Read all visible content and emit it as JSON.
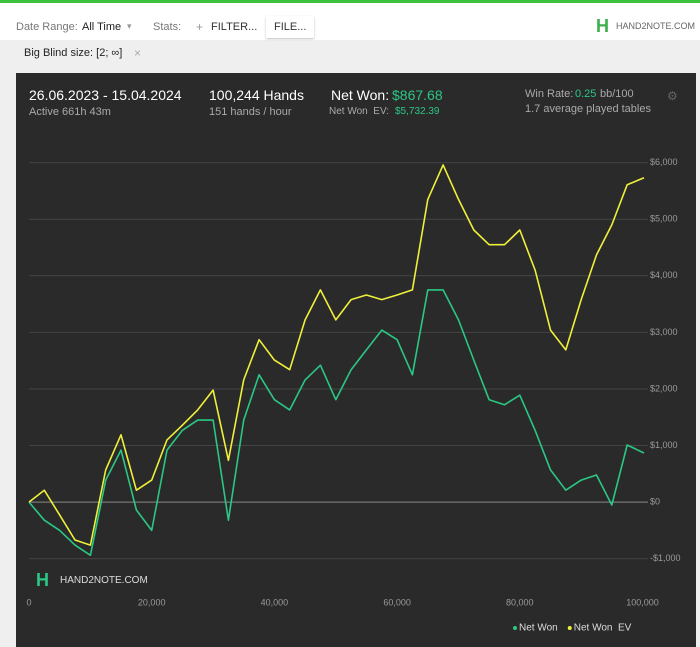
{
  "toolbar": {
    "date_range_label": "Date Range:",
    "date_range": "All Time",
    "stats_label": "Stats:",
    "filter_button": "FILTER...",
    "file_button": "FILE...",
    "brand": "HAND2NOTE.COM"
  },
  "filter_tag": "Big Blind size: [2; ∞]",
  "summary": {
    "period": "26.06.2023 - 15.04.2024",
    "active": "Active 661h 43m",
    "hands": "100,244 Hands",
    "hands_per_hour": "151 hands / hour",
    "net_won_label": "Net Won:",
    "net_won": "$867.68",
    "net_won_ev_label": "Net Won  EV:",
    "net_won_ev": "$5,732.39",
    "win_rate_label": "Win Rate:",
    "win_rate": "0.25",
    "win_rate_unit": "bb/100",
    "tables": "1.7 average played tables"
  },
  "chart_data": {
    "type": "line",
    "watermark": "HAND2NOTE.COM",
    "x": [
      0,
      2500,
      5000,
      7500,
      10000,
      12500,
      15000,
      17500,
      20000,
      22500,
      25000,
      27500,
      30000,
      32500,
      35000,
      37500,
      40000,
      42500,
      45000,
      47500,
      50000,
      52500,
      55000,
      57500,
      60000,
      62500,
      65000,
      67500,
      70000,
      72500,
      75000,
      77500,
      80000,
      82500,
      85000,
      87500,
      90000,
      92500,
      95000,
      97500,
      100244
    ],
    "series": [
      {
        "name": "Net Won",
        "color": "#2bc784",
        "values": [
          0,
          -320,
          -500,
          -760,
          -940,
          390,
          920,
          -140,
          -500,
          920,
          1270,
          1450,
          1450,
          -320,
          1450,
          2250,
          1810,
          1630,
          2160,
          2420,
          1810,
          2340,
          2690,
          3040,
          2870,
          2250,
          3750,
          3750,
          3220,
          2510,
          1810,
          1720,
          1890,
          1270,
          570,
          210,
          390,
          480,
          -50,
          1010,
          867.68
        ]
      },
      {
        "name": "Net Won  EV",
        "color": "#eef03a",
        "values": [
          0,
          210,
          -230,
          -670,
          -760,
          570,
          1190,
          210,
          390,
          1100,
          1360,
          1630,
          1980,
          740,
          2160,
          2870,
          2510,
          2340,
          3220,
          3750,
          3220,
          3580,
          3660,
          3580,
          3660,
          3750,
          5350,
          5960,
          5350,
          4810,
          4550,
          4550,
          4810,
          4100,
          3040,
          2690,
          3580,
          4370,
          4900,
          5610,
          5732.39
        ]
      }
    ],
    "xlim": [
      0,
      100244
    ],
    "ylim": [
      -1500,
      6400
    ],
    "xticks": [
      0,
      {
        "value": 20000,
        "label": "20,000"
      },
      {
        "value": 40000,
        "label": "40,000"
      },
      {
        "value": 60000,
        "label": "60,000"
      },
      {
        "value": 80000,
        "label": "80,000"
      },
      {
        "value": 100000,
        "label": "100,000"
      }
    ],
    "yticks": [
      {
        "value": -1000,
        "label": "-$1,000"
      },
      {
        "value": 0,
        "label": "$0"
      },
      {
        "value": 1000,
        "label": "$1,000"
      },
      {
        "value": 2000,
        "label": "$2,000"
      },
      {
        "value": 3000,
        "label": "$3,000"
      },
      {
        "value": 4000,
        "label": "$4,000"
      },
      {
        "value": 5000,
        "label": "$5,000"
      },
      {
        "value": 6000,
        "label": "$6,000"
      }
    ],
    "grid": true,
    "legend": "bottom-right"
  }
}
